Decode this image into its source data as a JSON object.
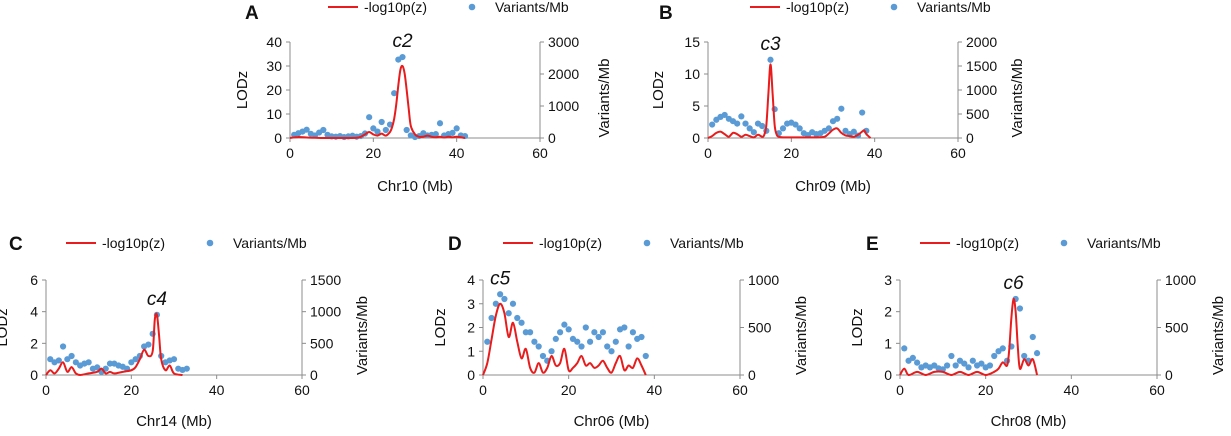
{
  "legend": {
    "line_label": "-log10p(z)",
    "dot_label": "Variants/Mb"
  },
  "colors": {
    "line": "#e81c1c",
    "dots": "#5b9bd5",
    "axis": "#8c8c8c"
  },
  "chart_data": [
    {
      "panel": "A",
      "type": "line+scatter",
      "peak_label": "c2",
      "xlabel": "Chr10 (Mb)",
      "ylabel": "LODz",
      "y2label": "Variants/Mb",
      "xlim": [
        0,
        60
      ],
      "xticks": [
        "0",
        "20",
        "40",
        "60"
      ],
      "ylim": [
        0,
        40
      ],
      "yticks": [
        "0",
        "10",
        "20",
        "30",
        "40"
      ],
      "y2lim": [
        0,
        3000
      ],
      "y2ticks": [
        "0",
        "1000",
        "2000",
        "3000"
      ],
      "line": {
        "name": "-log10p(z)",
        "x": [
          0,
          2,
          4,
          6,
          8,
          10,
          12,
          14,
          16,
          17,
          18,
          19,
          20,
          21,
          22,
          23,
          24,
          24.5,
          25,
          25.5,
          26,
          26.5,
          27,
          27.5,
          28,
          28.5,
          29,
          30,
          31,
          32,
          33,
          34,
          35,
          36,
          37,
          38,
          39,
          40,
          42
        ],
        "y": [
          0,
          0.4,
          0.2,
          0.1,
          0,
          0,
          0,
          0,
          0.1,
          0.5,
          1.5,
          2.5,
          1.5,
          1,
          1.8,
          1,
          2.5,
          4.5,
          8,
          14,
          22,
          28.5,
          30,
          27,
          20,
          12,
          5,
          1.5,
          0.5,
          0.5,
          1,
          0.5,
          0.3,
          0.5,
          0.2,
          0.5,
          0.3,
          0.5,
          0
        ]
      },
      "dots": {
        "name": "Variants/Mb",
        "x": [
          1,
          2,
          3,
          4,
          5,
          6,
          7,
          8,
          9,
          10,
          11,
          12,
          13,
          14,
          15,
          16,
          17,
          18,
          19,
          20,
          21,
          22,
          23,
          24,
          25,
          26,
          27,
          28,
          29,
          30,
          31,
          32,
          33,
          34,
          35,
          36,
          37,
          38,
          39,
          40,
          41,
          42
        ],
        "y": [
          100,
          150,
          200,
          260,
          130,
          80,
          170,
          250,
          100,
          50,
          40,
          60,
          30,
          50,
          70,
          40,
          60,
          140,
          650,
          300,
          200,
          500,
          250,
          420,
          1400,
          2450,
          2530,
          250,
          80,
          30,
          60,
          150,
          80,
          100,
          120,
          460,
          80,
          120,
          160,
          300,
          80,
          60
        ]
      }
    },
    {
      "panel": "B",
      "type": "line+scatter",
      "peak_label": "c3",
      "xlabel": "Chr09 (Mb)",
      "ylabel": "LODz",
      "y2label": "Variants/Mb",
      "xlim": [
        0,
        60
      ],
      "xticks": [
        "0",
        "20",
        "40",
        "60"
      ],
      "ylim": [
        0,
        15
      ],
      "yticks": [
        "0",
        "5",
        "10",
        "15"
      ],
      "y2lim": [
        0,
        2000
      ],
      "y2ticks": [
        "0",
        "500",
        "1000",
        "1500",
        "2000"
      ],
      "line": {
        "name": "-log10p(z)",
        "x": [
          0,
          1,
          2,
          3,
          4,
          5,
          6,
          7,
          8,
          9,
          10,
          11,
          12,
          13,
          13.5,
          14,
          14.5,
          15,
          15.5,
          16,
          16.5,
          17,
          18,
          20,
          22,
          24,
          26,
          28,
          29,
          30,
          31,
          32,
          33,
          34,
          35,
          36,
          37,
          37.5,
          38,
          39
        ],
        "y": [
          0,
          0.3,
          0.8,
          1,
          0.6,
          0.2,
          0.8,
          0.6,
          0.2,
          0.5,
          0.3,
          0.1,
          0.5,
          0.2,
          0.5,
          2,
          7,
          11.5,
          7,
          2,
          0.5,
          0.2,
          0.1,
          0.1,
          0.1,
          0.1,
          0.1,
          0.2,
          0.7,
          1.3,
          1.5,
          0.8,
          0.4,
          0.3,
          0.2,
          0.5,
          1,
          1.2,
          0.6,
          0
        ]
      },
      "dots": {
        "name": "Variants/Mb",
        "x": [
          1,
          2,
          3,
          4,
          5,
          6,
          7,
          8,
          9,
          10,
          11,
          12,
          13,
          14,
          15,
          16,
          17,
          18,
          19,
          20,
          21,
          22,
          23,
          24,
          25,
          26,
          27,
          28,
          29,
          30,
          31,
          32,
          33,
          34,
          35,
          36,
          37,
          38
        ],
        "y": [
          280,
          380,
          440,
          480,
          400,
          350,
          300,
          450,
          300,
          200,
          120,
          300,
          250,
          150,
          1630,
          600,
          100,
          200,
          300,
          320,
          280,
          200,
          100,
          60,
          120,
          80,
          100,
          150,
          200,
          350,
          400,
          610,
          150,
          80,
          130,
          50,
          530,
          150
        ]
      }
    },
    {
      "panel": "C",
      "type": "line+scatter",
      "peak_label": "c4",
      "xlabel": "Chr14 (Mb)",
      "ylabel": "LODz",
      "y2label": "Variants/Mb",
      "xlim": [
        0,
        60
      ],
      "xticks": [
        "0",
        "20",
        "40",
        "60"
      ],
      "ylim": [
        0,
        6
      ],
      "yticks": [
        "0",
        "2",
        "4",
        "6"
      ],
      "y2lim": [
        0,
        1500
      ],
      "y2ticks": [
        "0",
        "500",
        "1000",
        "1500"
      ],
      "line": {
        "name": "-log10p(z)",
        "x": [
          0,
          1,
          2,
          3,
          4,
          5,
          6,
          7,
          8,
          10,
          12,
          13,
          14,
          15,
          16,
          18,
          20,
          21,
          22,
          23,
          24,
          25,
          25.5,
          26,
          26.5,
          27,
          28,
          29,
          30,
          32
        ],
        "y": [
          0,
          0.3,
          0.1,
          0.4,
          0.8,
          0.2,
          0.5,
          0.1,
          0,
          0.1,
          0.2,
          0.4,
          0.1,
          0.2,
          0.1,
          0.2,
          0.3,
          0.5,
          1,
          1.6,
          1.2,
          1.5,
          3.5,
          3.8,
          2.5,
          1,
          0.3,
          0.6,
          0.1,
          0
        ]
      },
      "dots": {
        "name": "Variants/Mb",
        "x": [
          1,
          2,
          3,
          4,
          5,
          6,
          7,
          8,
          9,
          10,
          11,
          12,
          13,
          14,
          15,
          16,
          17,
          18,
          19,
          20,
          21,
          22,
          23,
          24,
          25,
          26,
          27,
          28,
          29,
          30,
          31,
          32,
          33
        ],
        "y": [
          250,
          200,
          230,
          450,
          250,
          300,
          200,
          150,
          180,
          200,
          100,
          120,
          50,
          100,
          180,
          180,
          150,
          130,
          100,
          200,
          250,
          300,
          450,
          480,
          650,
          950,
          300,
          200,
          230,
          250,
          100,
          80,
          100
        ]
      }
    },
    {
      "panel": "D",
      "type": "line+scatter",
      "peak_label": "c5",
      "xlabel": "Chr06 (Mb)",
      "ylabel": "LODz",
      "y2label": "Variants/Mb",
      "xlim": [
        0,
        60
      ],
      "xticks": [
        "0",
        "20",
        "40",
        "60"
      ],
      "ylim": [
        0,
        4
      ],
      "yticks": [
        "0",
        "1",
        "2",
        "3",
        "4"
      ],
      "y2lim": [
        0,
        1000
      ],
      "y2ticks": [
        "0",
        "500",
        "1000"
      ],
      "line": {
        "name": "-log10p(z)",
        "x": [
          0,
          1,
          2,
          3,
          4,
          5,
          6,
          7,
          8,
          9,
          10,
          11,
          12,
          13,
          14,
          15,
          16,
          17,
          18,
          19,
          20,
          21,
          22,
          23,
          24,
          25,
          26,
          27,
          28,
          29,
          30,
          31,
          32,
          33,
          34,
          35,
          36,
          37,
          38
        ],
        "y": [
          0,
          0.5,
          1.5,
          2.5,
          3,
          2.6,
          1.6,
          2.2,
          1.4,
          0.7,
          1.1,
          0.3,
          0.1,
          0.5,
          0.1,
          0.3,
          0.8,
          0.4,
          0.5,
          1.1,
          0.2,
          0.3,
          0.5,
          0.8,
          0.4,
          0.5,
          0.3,
          0.4,
          0.6,
          0.3,
          0.1,
          0.5,
          0.8,
          0.2,
          0.4,
          0.3,
          0.7,
          0.4,
          0
        ]
      },
      "dots": {
        "name": "Variants/Mb",
        "x": [
          1,
          2,
          3,
          4,
          5,
          6,
          7,
          8,
          9,
          10,
          11,
          12,
          13,
          14,
          15,
          16,
          17,
          18,
          19,
          20,
          21,
          22,
          23,
          24,
          25,
          26,
          27,
          28,
          29,
          30,
          31,
          32,
          33,
          34,
          35,
          36,
          37,
          38
        ],
        "y": [
          350,
          600,
          750,
          850,
          800,
          650,
          750,
          600,
          550,
          450,
          450,
          350,
          300,
          200,
          150,
          250,
          380,
          450,
          530,
          480,
          380,
          350,
          300,
          500,
          350,
          450,
          400,
          450,
          300,
          250,
          350,
          480,
          500,
          300,
          450,
          380,
          400,
          200
        ]
      }
    },
    {
      "panel": "E",
      "type": "line+scatter",
      "peak_label": "c6",
      "xlabel": "Chr08 (Mb)",
      "ylabel": "LODz",
      "y2label": "Variants/Mb",
      "xlim": [
        0,
        60
      ],
      "xticks": [
        "0",
        "20",
        "40",
        "60"
      ],
      "ylim": [
        0,
        3
      ],
      "yticks": [
        "0",
        "1",
        "2",
        "3"
      ],
      "y2lim": [
        0,
        1000
      ],
      "y2ticks": [
        "0",
        "500",
        "1000"
      ],
      "line": {
        "name": "-log10p(z)",
        "x": [
          0,
          1,
          2,
          4,
          6,
          8,
          10,
          12,
          14,
          16,
          18,
          20,
          22,
          23,
          24,
          25,
          25.5,
          26,
          26.5,
          27,
          27.5,
          28,
          29,
          30,
          31,
          32
        ],
        "y": [
          0,
          0.2,
          0,
          0.1,
          0,
          0.1,
          0.1,
          0,
          0.1,
          0,
          0.1,
          0,
          0.1,
          0.2,
          0.4,
          0.3,
          0.8,
          1.8,
          2.4,
          2,
          0.9,
          0.2,
          0.5,
          0.3,
          0.5,
          0
        ]
      },
      "dots": {
        "name": "Variants/Mb",
        "x": [
          1,
          2,
          3,
          4,
          5,
          6,
          7,
          8,
          9,
          10,
          11,
          12,
          13,
          14,
          15,
          16,
          17,
          18,
          19,
          20,
          21,
          22,
          23,
          24,
          25,
          26,
          27,
          28,
          29,
          30,
          31,
          32
        ],
        "y": [
          280,
          150,
          180,
          130,
          80,
          100,
          80,
          100,
          70,
          60,
          100,
          200,
          100,
          150,
          120,
          80,
          150,
          100,
          120,
          80,
          100,
          200,
          250,
          280,
          150,
          300,
          800,
          700,
          200,
          150,
          400,
          230
        ]
      }
    }
  ]
}
